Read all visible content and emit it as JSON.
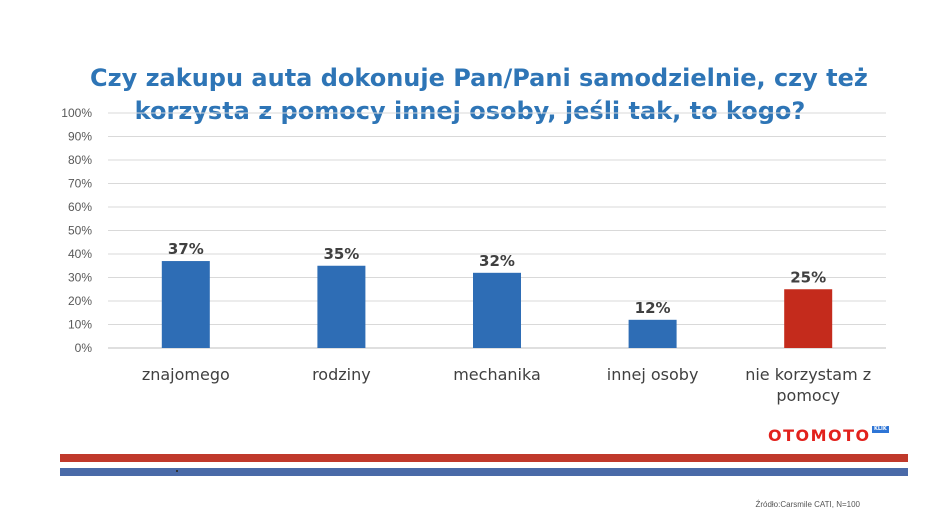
{
  "title_lines": [
    "Czy zakupu auta dokonuje Pan/Pani samodzielnie, czy też",
    "korzysta z pomocy innej osoby, jeśli tak, to kogo?"
  ],
  "logo": {
    "text": "OTOMOTO",
    "tag": "KLIK"
  },
  "source": "Źródło:Carsmile CATI, N=100",
  "colors": {
    "primary_bar": "#2e6db5",
    "highlight_bar": "#c42b1c",
    "title": "#2e75b6"
  },
  "chart_data": {
    "type": "bar",
    "categories": [
      "znajomego",
      "rodziny",
      "mechanika",
      "innej osoby",
      "nie korzystam z pomocy"
    ],
    "category_lines": [
      [
        "znajomego"
      ],
      [
        "rodziny"
      ],
      [
        "mechanika"
      ],
      [
        "innej osoby"
      ],
      [
        "nie korzystam z",
        "pomocy"
      ]
    ],
    "values": [
      37,
      35,
      32,
      12,
      25
    ],
    "data_labels": [
      "37%",
      "35%",
      "32%",
      "12%",
      "25%"
    ],
    "highlight_index": 4,
    "ylim": [
      0,
      100
    ],
    "yticks": [
      0,
      10,
      20,
      30,
      40,
      50,
      60,
      70,
      80,
      90,
      100
    ],
    "ytick_labels": [
      "0%",
      "10%",
      "20%",
      "30%",
      "40%",
      "50%",
      "60%",
      "70%",
      "80%",
      "90%",
      "100%"
    ],
    "grid": true,
    "legend": "none"
  }
}
